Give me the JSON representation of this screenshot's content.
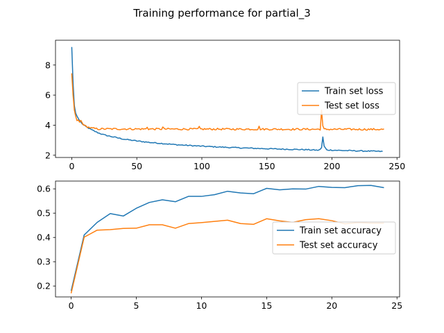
{
  "figure_title": "Training performance for partial_3",
  "chart_data": [
    {
      "type": "line",
      "xlim": [
        -12.5,
        252
      ],
      "ylim": [
        1.85,
        9.65
      ],
      "xticks": [
        0,
        50,
        100,
        150,
        200,
        250
      ],
      "yticks": [
        2,
        4,
        6,
        8
      ],
      "legend_position": "center-right",
      "series": [
        {
          "name": "Train set loss",
          "color": "#1f77b4",
          "keypoints": [
            [
              0,
              9.2
            ],
            [
              1,
              6.8
            ],
            [
              2,
              5.3
            ],
            [
              3,
              4.8
            ],
            [
              4,
              4.6
            ],
            [
              5,
              4.45
            ],
            [
              6,
              4.3
            ],
            [
              8,
              4.1
            ],
            [
              10,
              3.95
            ],
            [
              15,
              3.7
            ],
            [
              20,
              3.5
            ],
            [
              25,
              3.35
            ],
            [
              30,
              3.25
            ],
            [
              40,
              3.07
            ],
            [
              50,
              2.95
            ],
            [
              60,
              2.85
            ],
            [
              70,
              2.78
            ],
            [
              80,
              2.7
            ],
            [
              90,
              2.65
            ],
            [
              100,
              2.6
            ],
            [
              120,
              2.52
            ],
            [
              140,
              2.46
            ],
            [
              160,
              2.41
            ],
            [
              180,
              2.37
            ],
            [
              190,
              2.33
            ],
            [
              192,
              2.5
            ],
            [
              193,
              3.2
            ],
            [
              194,
              2.6
            ],
            [
              196,
              2.35
            ],
            [
              210,
              2.31
            ],
            [
              225,
              2.28
            ],
            [
              239,
              2.25
            ]
          ],
          "noise": 0.035
        },
        {
          "name": "Test set loss",
          "color": "#ff7f0e",
          "keypoints": [
            [
              0,
              7.45
            ],
            [
              1,
              6.0
            ],
            [
              2,
              5.0
            ],
            [
              3,
              4.6
            ],
            [
              4,
              4.3
            ],
            [
              5,
              4.35
            ],
            [
              6,
              4.2
            ],
            [
              7,
              4.3
            ],
            [
              8,
              4.15
            ],
            [
              10,
              3.95
            ],
            [
              15,
              3.8
            ],
            [
              20,
              3.75
            ],
            [
              240,
              3.72
            ]
          ],
          "spikes": [
            [
              192,
              5.0
            ],
            [
              193,
              3.95
            ],
            [
              70,
              3.88
            ],
            [
              98,
              3.92
            ],
            [
              144,
              3.93
            ],
            [
              58,
              3.86
            ]
          ],
          "noise": 0.06
        }
      ]
    },
    {
      "type": "line",
      "xlim": [
        -1.2,
        25.2
      ],
      "ylim": [
        0.155,
        0.632
      ],
      "xticks": [
        0,
        5,
        10,
        15,
        20,
        25
      ],
      "yticks": [
        0.2,
        0.3,
        0.4,
        0.5,
        0.6
      ],
      "legend_position": "center-right",
      "series": [
        {
          "name": "Train set accuracy",
          "color": "#1f77b4",
          "x": [
            0,
            1,
            2,
            3,
            4,
            5,
            6,
            7,
            8,
            9,
            10,
            11,
            12,
            13,
            14,
            15,
            16,
            17,
            18,
            19,
            20,
            21,
            22,
            23,
            24
          ],
          "y": [
            0.18,
            0.41,
            0.462,
            0.498,
            0.488,
            0.52,
            0.544,
            0.555,
            0.547,
            0.569,
            0.569,
            0.576,
            0.59,
            0.583,
            0.58,
            0.602,
            0.596,
            0.6,
            0.599,
            0.61,
            0.606,
            0.605,
            0.613,
            0.614,
            0.605
          ]
        },
        {
          "name": "Test set accuracy",
          "color": "#ff7f0e",
          "x": [
            0,
            1,
            2,
            3,
            4,
            5,
            6,
            7,
            8,
            9,
            10,
            11,
            12,
            13,
            14,
            15,
            16,
            17,
            18,
            19,
            20,
            21,
            22,
            23,
            24
          ],
          "y": [
            0.17,
            0.401,
            0.43,
            0.432,
            0.437,
            0.438,
            0.452,
            0.452,
            0.438,
            0.457,
            0.461,
            0.466,
            0.471,
            0.457,
            0.454,
            0.477,
            0.468,
            0.462,
            0.473,
            0.477,
            0.469,
            0.456,
            0.461,
            0.459,
            0.459
          ]
        }
      ]
    }
  ]
}
